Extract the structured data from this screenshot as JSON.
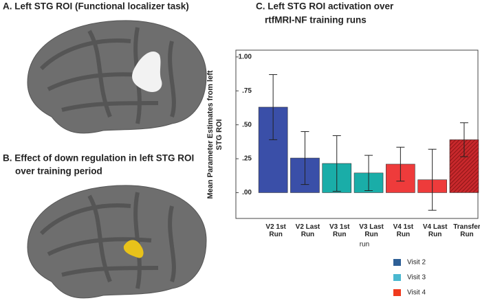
{
  "panels": {
    "a_title": "A.  Left STG ROI (Functional localizer task)",
    "b_title_lines": [
      "B. Effect of down regulation in left STG ROI",
      "over training period"
    ]
  },
  "chart_data": {
    "type": "bar",
    "title_lines": [
      "C. Left STG ROI activation over",
      "rtfMRI-NF training runs"
    ],
    "categories": [
      "V2 1st Run",
      "V2 Last Run",
      "V3 1st Run",
      "V3 Last Run",
      "V4 1st Run",
      "V4 Last Run",
      "Transfer Run"
    ],
    "values": [
      0.63,
      0.255,
      0.215,
      0.145,
      0.21,
      0.095,
      0.39
    ],
    "errors": [
      0.24,
      0.195,
      0.205,
      0.13,
      0.125,
      0.225,
      0.125
    ],
    "bar_colors": [
      "#3a4fa8",
      "#3a4fa8",
      "#1aada8",
      "#1aada8",
      "#ee3b3b",
      "#ee3b3b",
      "#c8282c"
    ],
    "bar_hatch": [
      false,
      false,
      false,
      false,
      false,
      false,
      true
    ],
    "x_label": "run",
    "y_label_lines": [
      "Mean Parameter Estimates from left",
      "STG ROI"
    ],
    "ylim": [
      -0.19,
      1.05
    ],
    "yticks": [
      {
        "value": 0,
        "label": ".00"
      },
      {
        "value": 0.25,
        "label": ".25"
      },
      {
        "value": 0.5,
        "label": ".50"
      },
      {
        "value": 0.75,
        "label": ".75"
      },
      {
        "value": 1,
        "label": "1.00"
      }
    ],
    "legend": [
      {
        "name": "Visit 2",
        "color": "#2e5f96"
      },
      {
        "name": "Visit 3",
        "color": "#4ab8d0"
      },
      {
        "name": "Visit 4",
        "color": "#f03a1e"
      }
    ]
  }
}
